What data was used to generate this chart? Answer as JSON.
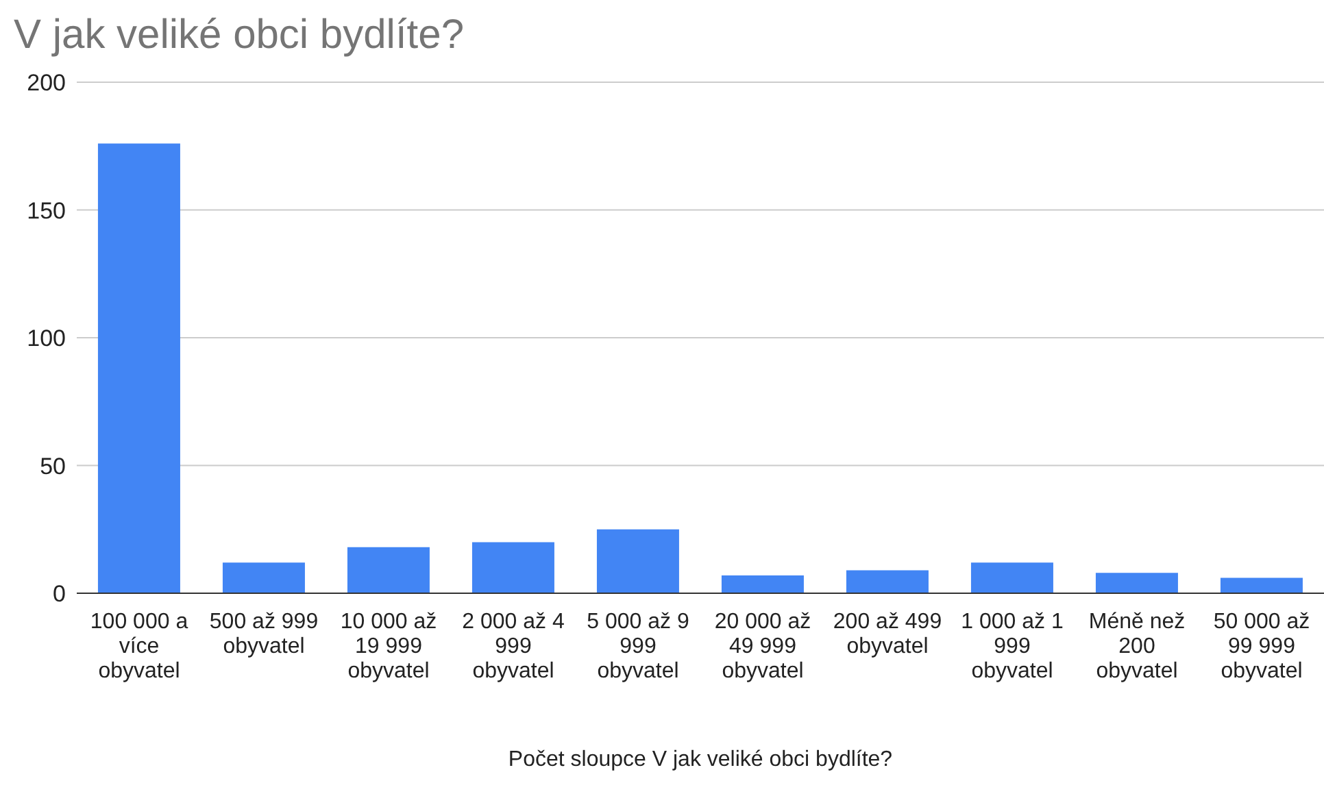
{
  "chart_data": {
    "type": "bar",
    "title": "V jak veliké obci bydlíte?",
    "xlabel": "Počet sloupce V jak veliké obci bydlíte?",
    "categories": [
      "100 000 a více obyvatel",
      "500 až 999 obyvatel",
      "10 000 až 19 999 obyvatel",
      "2 000 až 4 999 obyvatel",
      "5 000 až 9 999 obyvatel",
      "20 000 až 49 999 obyvatel",
      "200 až 499 obyvatel",
      "1 000 až 1 999 obyvatel",
      "Méně než 200 obyvatel",
      "50 000 až 99 999 obyvatel"
    ],
    "values": [
      176,
      12,
      18,
      20,
      25,
      7,
      9,
      12,
      8,
      6
    ],
    "color": "#4285f4",
    "ylim": [
      0,
      200
    ],
    "yticks": [
      0,
      50,
      100,
      150,
      200
    ],
    "grid": "y",
    "legend": false
  }
}
